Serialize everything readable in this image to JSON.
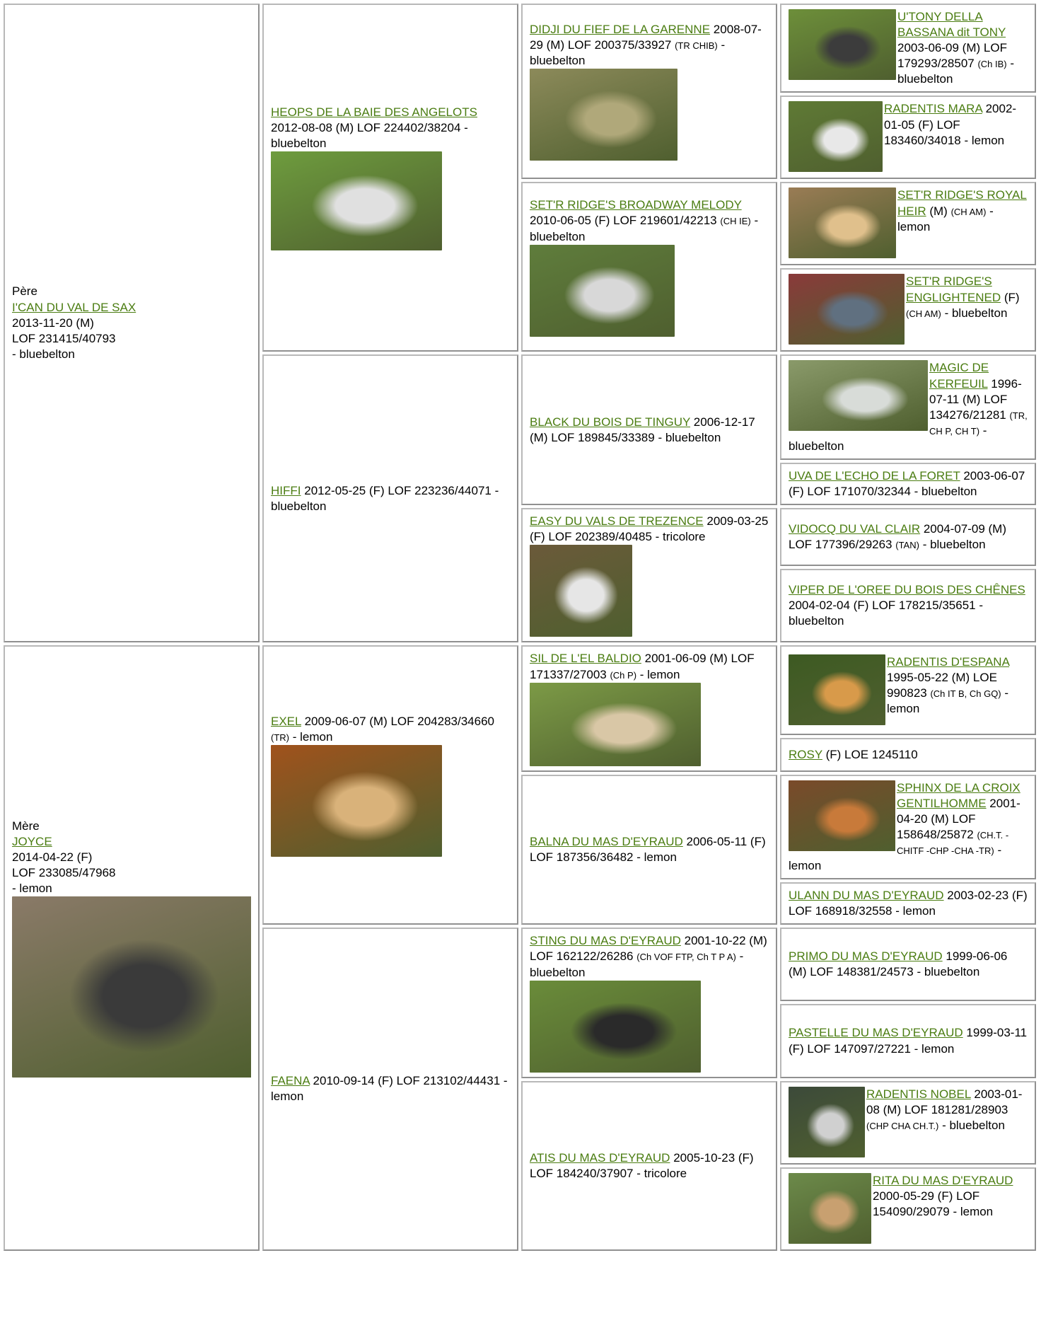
{
  "pedigree": {
    "father": {
      "label": "Père",
      "name": "I'CAN DU VAL DE SAX",
      "details": "2013-11-20 (M)",
      "registry": "LOF 231415/40793",
      "tail": "- bluebelton",
      "sire": {
        "name": "HEOPS DE LA BAIE DES ANGELOTS",
        "details": "2012-08-08 (M) LOF 224402/38204 - bluebelton",
        "sire": {
          "name": "DIDJI DU FIEF DE LA GARENNE",
          "details": "2008-07-29 (M) LOF 200375/33927",
          "titles": "(TR CHIB)",
          "tail": "- bluebelton",
          "sire": {
            "name": "U'TONY DELLA BASSANA dit TONY",
            "details": "2003-06-09 (M) LOF 179293/28507",
            "titles": "(Ch IB)",
            "tail": "- bluebelton"
          },
          "dam": {
            "name": "RADENTIS MARA",
            "details": "2002-01-05 (F) LOF 183460/34018 - lemon"
          }
        },
        "dam": {
          "name": "SET'R RIDGE'S BROADWAY MELODY",
          "details": "2010-06-05 (F) LOF 219601/42213",
          "titles": "(CH IE)",
          "tail": "- bluebelton",
          "sire": {
            "name": "SET'R RIDGE'S ROYAL HEIR",
            "details": "(M)",
            "titles": "(CH AM)",
            "tail": "- lemon"
          },
          "dam": {
            "name": "SET'R RIDGE'S ENGLIGHTENED",
            "details": "(F)",
            "titles": "(CH AM)",
            "tail": "- bluebelton"
          }
        }
      },
      "dam": {
        "name": "HIFFI",
        "details": "2012-05-25 (F) LOF 223236/44071 - bluebelton",
        "sire": {
          "name": "BLACK DU BOIS DE TINGUY",
          "details": "2006-12-17 (M) LOF 189845/33389 - bluebelton",
          "sire": {
            "name": "MAGIC DE KERFEUIL",
            "details": "1996-07-11 (M) LOF 134276/21281",
            "titles": "(TR, CH P, CH T)",
            "tail": "- bluebelton"
          },
          "dam": {
            "name": "UVA DE L'ECHO DE LA FORET",
            "details": "2003-06-07 (F) LOF 171070/32344 - bluebelton"
          }
        },
        "dam": {
          "name": "EASY DU VALS DE TREZENCE",
          "details": "2009-03-25 (F) LOF 202389/40485 - tricolore",
          "sire": {
            "name": "VIDOCQ DU VAL CLAIR",
            "details": "2004-07-09 (M) LOF 177396/29263",
            "titles": "(TAN)",
            "tail": "- bluebelton"
          },
          "dam": {
            "name": "VIPER DE L'OREE DU BOIS DES CHÊNES",
            "details": "2004-02-04 (F) LOF 178215/35651 - bluebelton"
          }
        }
      }
    },
    "mother": {
      "label": "Mère",
      "name": "JOYCE",
      "details": "2014-04-22 (F)",
      "registry": "LOF 233085/47968",
      "tail": "- lemon",
      "sire": {
        "name": "EXEL",
        "details": "2009-06-07 (M) LOF 204283/34660",
        "titles": "(TR)",
        "tail": "- lemon",
        "sire": {
          "name": "SIL DE L'EL BALDIO",
          "details": "2001-06-09 (M) LOF 171337/27003",
          "titles": "(Ch P)",
          "tail": "- lemon",
          "sire": {
            "name": "RADENTIS D'ESPANA",
            "details": "1995-05-22 (M) LOE 990823",
            "titles": "(Ch IT B, Ch GQ)",
            "tail": "- lemon"
          },
          "dam": {
            "name": "ROSY",
            "details": "(F) LOE 1245110"
          }
        },
        "dam": {
          "name": "BALNA DU MAS D'EYRAUD",
          "details": "2006-05-11 (F) LOF 187356/36482 - lemon",
          "sire": {
            "name": "SPHINX DE LA CROIX GENTILHOMME",
            "details": "2001-04-20 (M) LOF 158648/25872",
            "titles": "(CH.T. -CHITF -CHP -CHA -TR)",
            "tail": "- lemon"
          },
          "dam": {
            "name": "ULANN DU MAS D'EYRAUD",
            "details": "2003-02-23 (F) LOF 168918/32558 - lemon"
          }
        }
      },
      "dam": {
        "name": "FAENA",
        "details": "2010-09-14 (F) LOF 213102/44431 - lemon",
        "sire": {
          "name": "STING DU MAS D'EYRAUD",
          "details": "2001-10-22 (M) LOF 162122/26286",
          "titles": "(Ch VOF FTP, Ch T P A)",
          "tail": "- bluebelton",
          "sire": {
            "name": "PRIMO DU MAS D'EYRAUD",
            "details": "1999-06-06 (M) LOF 148381/24573 - bluebelton"
          },
          "dam": {
            "name": "PASTELLE DU MAS D'EYRAUD",
            "details": "1999-03-11 (F) LOF 147097/27221 - lemon"
          }
        },
        "dam": {
          "name": "ATIS DU MAS D'EYRAUD",
          "details": "2005-10-23 (F) LOF 184240/37907 - tricolore",
          "sire": {
            "name": "RADENTIS NOBEL",
            "details": "2003-01-08 (M) LOF 181281/28903",
            "titles": "(CHP CHA CH.T.)",
            "tail": "- bluebelton"
          },
          "dam": {
            "name": "RITA DU MAS D'EYRAUD",
            "details": "2000-05-29 (F) LOF 154090/29079 - lemon"
          }
        }
      }
    }
  }
}
